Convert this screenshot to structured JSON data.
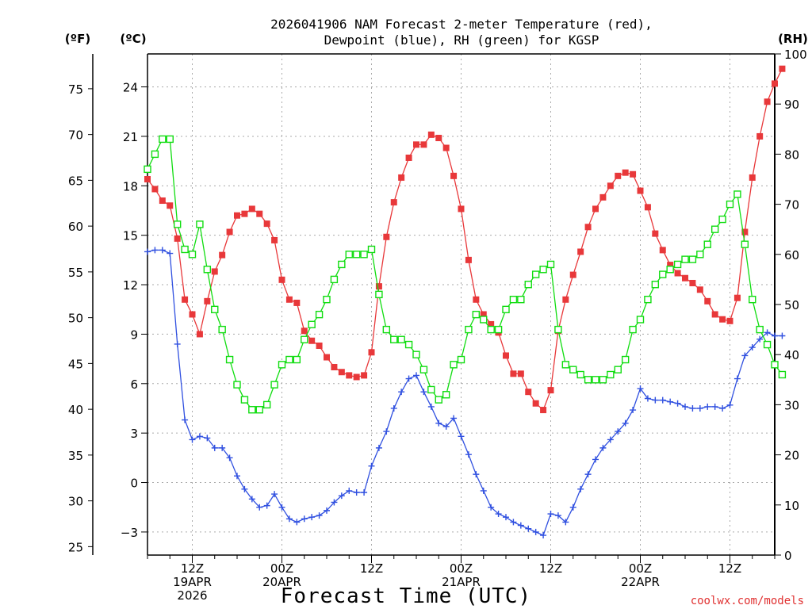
{
  "chart_data": {
    "type": "line",
    "title_line1": "2026041906 NAM Forecast 2-meter Temperature (red),",
    "title_line2": "Dewpoint (blue), RH (green) for KGSP",
    "xlabel": "Forecast Time (UTC)",
    "credit": "coolwx.com/models",
    "unit_f": "(ºF)",
    "unit_c": "(ºC)",
    "unit_rh": "(RH)",
    "x_start_hour": 6,
    "x_end_hour": 90,
    "xlim_hours": [
      6,
      90
    ],
    "ylim_c": [
      -4.4,
      26.0
    ],
    "ylim_rh": [
      0,
      100
    ],
    "f_ticks": [
      25,
      30,
      35,
      40,
      45,
      50,
      55,
      60,
      65,
      70,
      75
    ],
    "c_ticks": [
      -3,
      0,
      3,
      6,
      9,
      12,
      15,
      18,
      21,
      24
    ],
    "rh_ticks": [
      0,
      10,
      20,
      30,
      40,
      50,
      60,
      70,
      80,
      90,
      100
    ],
    "c_tick_labels": [
      "−3",
      "0",
      "3",
      "6",
      "9",
      "12",
      "15",
      "18",
      "21",
      "24"
    ],
    "x_ticks": [
      {
        "hour": 12,
        "label1": "12Z",
        "label2": "19APR",
        "label3": "2026"
      },
      {
        "hour": 24,
        "label1": "00Z",
        "label2": "20APR",
        "label3": ""
      },
      {
        "hour": 36,
        "label1": "12Z",
        "label2": "",
        "label3": ""
      },
      {
        "hour": 48,
        "label1": "00Z",
        "label2": "21APR",
        "label3": ""
      },
      {
        "hour": 60,
        "label1": "12Z",
        "label2": "",
        "label3": ""
      },
      {
        "hour": 72,
        "label1": "00Z",
        "label2": "22APR",
        "label3": ""
      },
      {
        "hour": 84,
        "label1": "12Z",
        "label2": "",
        "label3": ""
      }
    ],
    "series": [
      {
        "name": "Temperature (C)",
        "color": "#e8383a",
        "marker": "filled-square",
        "axis": "c",
        "values": [
          18.4,
          17.8,
          17.1,
          16.8,
          14.8,
          11.1,
          10.2,
          9.0,
          11.0,
          12.8,
          13.8,
          15.2,
          16.2,
          16.3,
          16.6,
          16.3,
          15.7,
          14.7,
          12.3,
          11.1,
          10.9,
          9.2,
          8.6,
          8.3,
          7.6,
          7.0,
          6.7,
          6.5,
          6.4,
          6.5,
          7.9,
          11.9,
          14.9,
          17.0,
          18.5,
          19.7,
          20.5,
          20.5,
          21.1,
          20.9,
          20.3,
          18.6,
          16.6,
          13.5,
          11.1,
          10.2,
          9.6,
          9.1,
          7.7,
          6.6,
          6.6,
          5.5,
          4.8,
          4.4,
          5.6,
          9.2,
          11.1,
          12.6,
          14.0,
          15.5,
          16.6,
          17.3,
          18.0,
          18.6,
          18.8,
          18.7,
          17.7,
          16.7,
          15.1,
          14.1,
          13.2,
          12.7,
          12.4,
          12.1,
          11.7,
          11.0,
          10.2,
          9.9,
          9.8,
          11.2,
          15.2,
          18.5,
          21.0,
          23.1,
          24.2,
          25.1
        ]
      },
      {
        "name": "Dewpoint (C)",
        "color": "#3050e0",
        "marker": "plus",
        "axis": "c",
        "values": [
          14.0,
          14.1,
          14.1,
          13.9,
          8.4,
          3.8,
          2.6,
          2.8,
          2.7,
          2.1,
          2.1,
          1.5,
          0.4,
          -0.4,
          -1.0,
          -1.5,
          -1.4,
          -0.7,
          -1.5,
          -2.2,
          -2.4,
          -2.2,
          -2.1,
          -2.0,
          -1.7,
          -1.2,
          -0.8,
          -0.5,
          -0.6,
          -0.6,
          1.0,
          2.1,
          3.1,
          4.5,
          5.5,
          6.3,
          6.5,
          5.5,
          4.6,
          3.6,
          3.4,
          3.9,
          2.8,
          1.7,
          0.5,
          -0.5,
          -1.5,
          -1.9,
          -2.1,
          -2.4,
          -2.6,
          -2.8,
          -3.0,
          -3.2,
          -1.9,
          -2.0,
          -2.4,
          -1.5,
          -0.4,
          0.5,
          1.4,
          2.1,
          2.6,
          3.1,
          3.6,
          4.4,
          5.7,
          5.1,
          5.0,
          5.0,
          4.9,
          4.8,
          4.6,
          4.5,
          4.5,
          4.6,
          4.6,
          4.5,
          4.7,
          6.3,
          7.7,
          8.2,
          8.7,
          9.1,
          8.9,
          8.9
        ]
      },
      {
        "name": "RH (%)",
        "color": "#10dd10",
        "marker": "open-square",
        "axis": "rh",
        "values": [
          77,
          80,
          83,
          83,
          66,
          61,
          60,
          66,
          57,
          49,
          45,
          39,
          34,
          31,
          29,
          29,
          30,
          34,
          38,
          39,
          39,
          43,
          46,
          48,
          51,
          55,
          58,
          60,
          60,
          60,
          61,
          52,
          45,
          43,
          43,
          42,
          40,
          37,
          33,
          31,
          32,
          38,
          39,
          45,
          48,
          47,
          45,
          45,
          49,
          51,
          51,
          54,
          56,
          57,
          58,
          45,
          38,
          37,
          36,
          35,
          35,
          35,
          36,
          37,
          39,
          45,
          47,
          51,
          54,
          56,
          57,
          58,
          59,
          59,
          60,
          62,
          65,
          67,
          70,
          72,
          62,
          51,
          45,
          42,
          38,
          36
        ]
      }
    ]
  }
}
